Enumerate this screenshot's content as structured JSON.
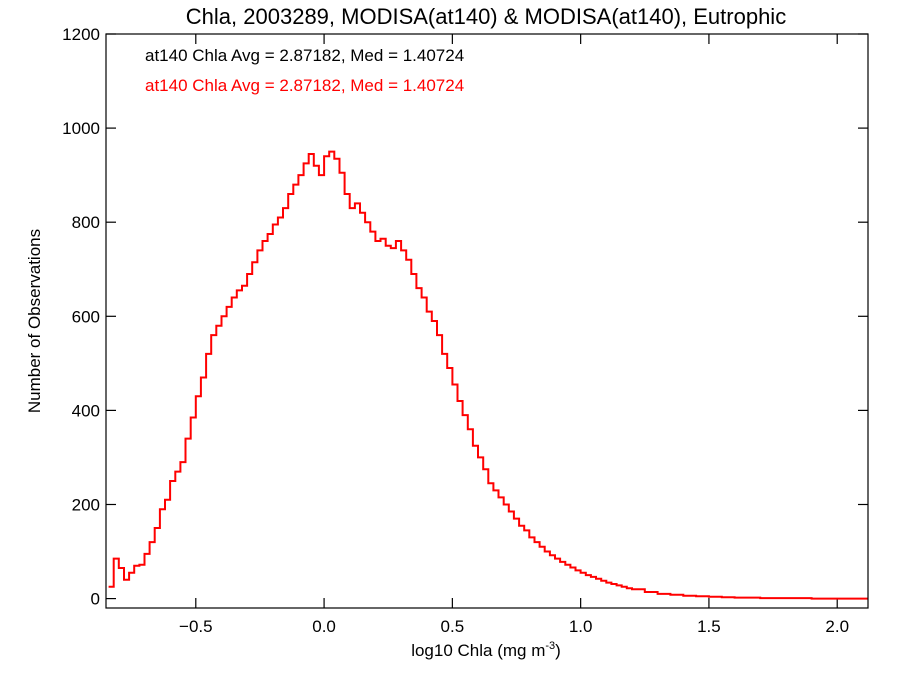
{
  "chart_data": {
    "type": "line",
    "title": "Chla, 2003289, MODISA(at140) & MODISA(at140), Eutrophic",
    "xlabel": "log10 Chla (mg m",
    "xlabel_sup": "-3",
    "xlabel_close": ")",
    "ylabel": "Number of Observations",
    "xlim": [
      -0.85,
      2.12
    ],
    "ylim": [
      -20,
      1200
    ],
    "xticks": [
      -0.5,
      0.0,
      0.5,
      1.0,
      1.5,
      2.0
    ],
    "xtick_labels": [
      "−0.5",
      "0.0",
      "0.5",
      "1.0",
      "1.5",
      "2.0"
    ],
    "yticks": [
      0,
      200,
      400,
      600,
      800,
      1000,
      1200
    ],
    "ytick_labels": [
      "0",
      "200",
      "400",
      "600",
      "800",
      "1000",
      "1200"
    ],
    "legend": [
      {
        "text": "at140 Chla Avg = 2.87182, Med = 1.40724",
        "color": "#000000"
      },
      {
        "text": "at140 Chla Avg = 2.87182, Med = 1.40724",
        "color": "#ff0000"
      }
    ],
    "series": [
      {
        "color": "#ff0000",
        "x": [
          -0.84,
          -0.82,
          -0.8,
          -0.78,
          -0.76,
          -0.74,
          -0.72,
          -0.7,
          -0.68,
          -0.66,
          -0.64,
          -0.62,
          -0.6,
          -0.58,
          -0.56,
          -0.54,
          -0.52,
          -0.5,
          -0.48,
          -0.46,
          -0.44,
          -0.42,
          -0.4,
          -0.38,
          -0.36,
          -0.34,
          -0.32,
          -0.3,
          -0.28,
          -0.26,
          -0.24,
          -0.22,
          -0.2,
          -0.18,
          -0.16,
          -0.14,
          -0.12,
          -0.1,
          -0.08,
          -0.06,
          -0.04,
          -0.02,
          0.0,
          0.02,
          0.04,
          0.06,
          0.08,
          0.1,
          0.12,
          0.14,
          0.16,
          0.18,
          0.2,
          0.22,
          0.24,
          0.26,
          0.28,
          0.3,
          0.32,
          0.34,
          0.36,
          0.38,
          0.4,
          0.42,
          0.44,
          0.46,
          0.48,
          0.5,
          0.52,
          0.54,
          0.56,
          0.58,
          0.6,
          0.62,
          0.64,
          0.66,
          0.68,
          0.7,
          0.72,
          0.74,
          0.76,
          0.78,
          0.8,
          0.82,
          0.84,
          0.86,
          0.88,
          0.9,
          0.92,
          0.94,
          0.96,
          0.98,
          1.0,
          1.02,
          1.04,
          1.06,
          1.08,
          1.1,
          1.12,
          1.14,
          1.16,
          1.18,
          1.2,
          1.25,
          1.3,
          1.35,
          1.4,
          1.45,
          1.5,
          1.55,
          1.6,
          1.65,
          1.7,
          1.75,
          1.8,
          1.85,
          1.9,
          1.95,
          2.0,
          2.05,
          2.1
        ],
        "values": [
          25,
          85,
          65,
          40,
          55,
          70,
          72,
          95,
          120,
          150,
          190,
          210,
          250,
          270,
          290,
          340,
          385,
          430,
          470,
          520,
          560,
          580,
          600,
          620,
          640,
          655,
          665,
          690,
          715,
          740,
          760,
          775,
          795,
          810,
          830,
          860,
          880,
          900,
          925,
          945,
          920,
          900,
          940,
          950,
          935,
          905,
          860,
          830,
          840,
          820,
          800,
          780,
          760,
          765,
          750,
          745,
          760,
          740,
          720,
          690,
          660,
          640,
          610,
          590,
          560,
          520,
          490,
          455,
          420,
          390,
          360,
          325,
          300,
          275,
          245,
          230,
          215,
          200,
          185,
          170,
          155,
          145,
          130,
          120,
          110,
          100,
          92,
          85,
          78,
          72,
          66,
          60,
          55,
          50,
          46,
          42,
          38,
          34,
          31,
          28,
          25,
          22,
          20,
          14,
          10,
          8,
          6,
          5,
          4,
          3,
          2,
          2,
          1,
          1,
          1,
          1,
          0,
          0,
          0,
          0,
          0
        ]
      }
    ]
  }
}
